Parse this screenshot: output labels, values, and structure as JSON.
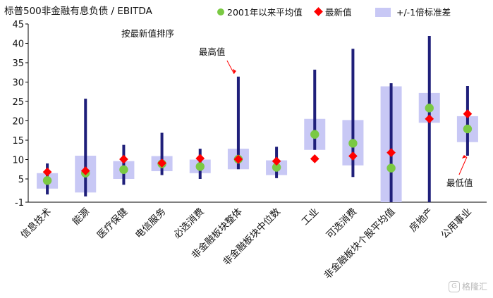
{
  "chart_data": {
    "type": "range-bar",
    "title": "标普500非金融有息负债 / EBITDA",
    "subtitle": "按最新值排序",
    "legend": [
      "2001年以来平均值",
      "最新值",
      "+/-1倍标准差"
    ],
    "ylim": [
      -1,
      45
    ],
    "yticks": [
      -1,
      5,
      10,
      15,
      20,
      25,
      30,
      35,
      40,
      45
    ],
    "colors": {
      "range_line": "#1f1f7a",
      "std_box": "#c8c8f5",
      "mean_marker": "#7ac943",
      "latest_marker": "#ff0000"
    },
    "categories": [
      "信息技术",
      "能源",
      "医疗保健",
      "电信服务",
      "必选消费",
      "非金融板块整体",
      "非金融板块中位数",
      "工业",
      "可选消费",
      "非金融板块个股平均值",
      "房地产",
      "公用事业"
    ],
    "range_min": [
      1.0,
      0.5,
      3.5,
      6.0,
      5.0,
      7.5,
      5.2,
      12.5,
      5.5,
      -1.0,
      -1.0,
      11.0
    ],
    "range_max": [
      9.0,
      25.7,
      13.8,
      16.9,
      12.8,
      31.4,
      13.3,
      33.2,
      38.6,
      29.7,
      41.9,
      29.0
    ],
    "std_low": [
      2.5,
      1.5,
      5.0,
      7.0,
      6.5,
      7.5,
      6.0,
      12.5,
      8.5,
      -1.0,
      19.5,
      14.5
    ],
    "std_high": [
      6.5,
      11.0,
      9.6,
      10.9,
      10.0,
      12.8,
      9.8,
      20.5,
      20.2,
      28.9,
      27.2,
      21.2
    ],
    "mean": [
      4.6,
      6.5,
      7.4,
      8.9,
      8.2,
      10.1,
      8.0,
      16.5,
      14.2,
      7.8,
      23.3,
      17.9
    ],
    "latest": [
      6.8,
      7.1,
      10.1,
      9.1,
      10.3,
      10.1,
      9.6,
      10.2,
      10.9,
      11.8,
      20.5,
      21.8
    ],
    "annotations": [
      {
        "text": "最高值",
        "category": "非金融板块整体"
      },
      {
        "text": "最低值",
        "category": "公用事业"
      }
    ]
  },
  "watermark": "格隆汇"
}
